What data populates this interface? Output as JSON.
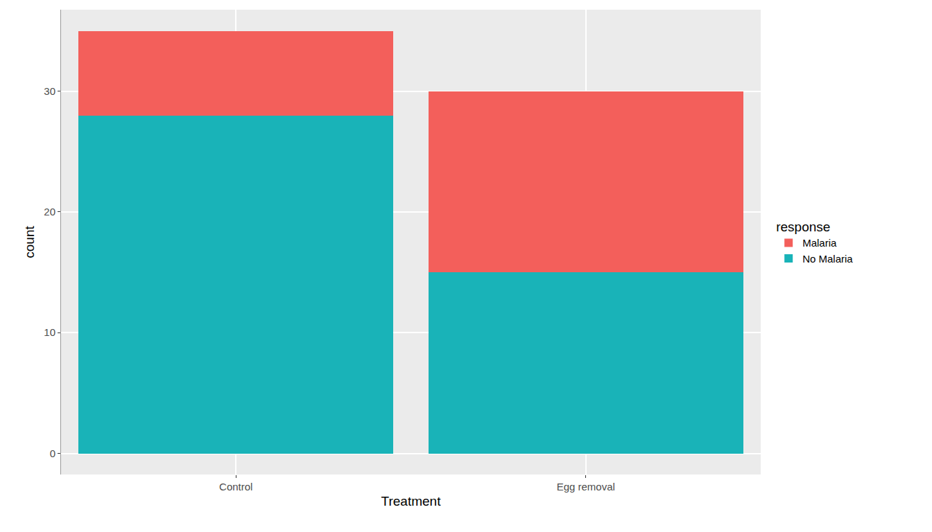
{
  "chart_data": {
    "type": "bar",
    "stacked": true,
    "x_label": "Treatment",
    "y_label": "count",
    "legend_title": "response",
    "categories": [
      "Control",
      "Egg removal"
    ],
    "series": [
      {
        "name": "No Malaria",
        "color": "#19B3B8",
        "values": [
          28,
          15
        ]
      },
      {
        "name": "Malaria",
        "color": "#F35F5B",
        "values": [
          7,
          15
        ]
      }
    ],
    "ylim": [
      -1.75,
      36.75
    ],
    "yticks": [
      0,
      10,
      20,
      30
    ],
    "grid": true,
    "legend": "right"
  }
}
